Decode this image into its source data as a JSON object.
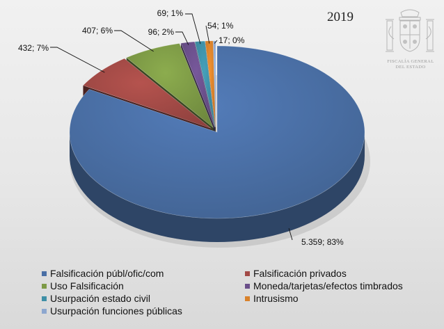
{
  "header": {
    "year": "2019"
  },
  "emblem": {
    "caption_line1": "FISCALÍA GENERAL",
    "caption_line2": "DEL ESTADO"
  },
  "chart_data": {
    "type": "pie",
    "title": "2019",
    "legend_position": "bottom",
    "slices": [
      {
        "name": "Falsificación públ/ofic/com",
        "value": 5359,
        "label": "5.359; 83%",
        "color": "#4a6fa5"
      },
      {
        "name": "Falsificación privados",
        "value": 432,
        "label": "432; 7%",
        "color": "#a24a46"
      },
      {
        "name": "Uso Falsificación",
        "value": 407,
        "label": "407; 6%",
        "color": "#7d9a46"
      },
      {
        "name": "Moneda/tarjetas/efectos timbrados",
        "value": 96,
        "label": "96; 2%",
        "color": "#6a4f8a"
      },
      {
        "name": "Usurpación estado civil",
        "value": 69,
        "label": "69; 1%",
        "color": "#3e8fa6"
      },
      {
        "name": "Intrusismo",
        "value": 54,
        "label": "54; 1%",
        "color": "#d9822b"
      },
      {
        "name": "Usurpación funciones públicas",
        "value": 17,
        "label": "17; 0%",
        "color": "#8da7cf"
      }
    ]
  }
}
